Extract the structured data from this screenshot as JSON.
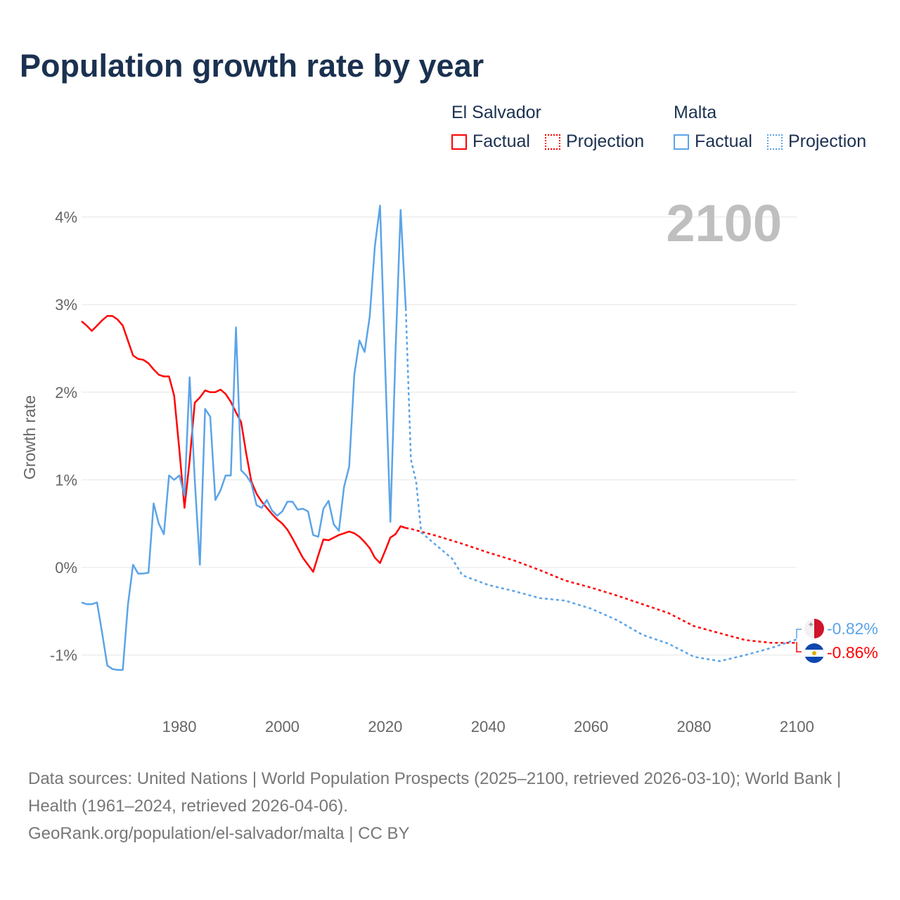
{
  "title": "Population growth rate by year",
  "year_label": "2100",
  "legend": {
    "groups": [
      {
        "name": "El Salvador",
        "factual": "Factual",
        "projection": "Projection",
        "color": "#ff0000"
      },
      {
        "name": "Malta",
        "factual": "Factual",
        "projection": "Projection",
        "color": "#5ba4e8"
      }
    ]
  },
  "end_labels": {
    "malta": "-0.82%",
    "el_salvador": "-0.86%"
  },
  "source": {
    "line1": "Data sources: United Nations | World Population Prospects (2025–2100, retrieved 2026-03-10); World Bank | Health (1961–2024, retrieved 2026-04-06).",
    "line2": "GeoRank.org/population/el-salvador/malta | CC BY"
  },
  "chart_data": {
    "type": "line",
    "title": "Population growth rate by year",
    "xlabel": "",
    "ylabel": "Growth rate",
    "xlim": [
      1961,
      2100
    ],
    "ylim": [
      -1.6,
      4.8
    ],
    "x_ticks": [
      1980,
      2000,
      2020,
      2040,
      2060,
      2080,
      2100
    ],
    "y_ticks": [
      -1,
      0,
      1,
      2,
      3,
      4
    ],
    "y_tick_labels": [
      "-1%",
      "0%",
      "1%",
      "2%",
      "3%",
      "4%"
    ],
    "grid": true,
    "legend_position": "top-right",
    "series": [
      {
        "name": "El Salvador",
        "kind": "factual",
        "color": "#ff0000",
        "x_start": 1961,
        "values": [
          2.81,
          2.76,
          2.7,
          2.76,
          2.82,
          2.87,
          2.87,
          2.83,
          2.76,
          2.59,
          2.42,
          2.38,
          2.37,
          2.33,
          2.26,
          2.2,
          2.18,
          2.18,
          1.96,
          1.34,
          0.68,
          1.22,
          1.88,
          1.94,
          2.02,
          2.0,
          2.0,
          2.03,
          1.98,
          1.89,
          1.77,
          1.66,
          1.3,
          0.98,
          0.84,
          0.75,
          0.68,
          0.61,
          0.55,
          0.5,
          0.43,
          0.33,
          0.22,
          0.11,
          0.03,
          -0.05,
          0.14,
          0.32,
          0.31,
          0.34,
          0.37,
          0.39,
          0.41,
          0.39,
          0.35,
          0.29,
          0.22,
          0.11,
          0.05,
          0.19,
          0.34,
          0.38,
          0.47,
          0.45
        ]
      },
      {
        "name": "El Salvador",
        "kind": "projection",
        "color": "#ff0000",
        "x": [
          2024,
          2025,
          2030,
          2035,
          2040,
          2045,
          2050,
          2055,
          2060,
          2065,
          2070,
          2075,
          2080,
          2085,
          2090,
          2095,
          2100
        ],
        "values": [
          0.45,
          0.44,
          0.36,
          0.27,
          0.17,
          0.08,
          -0.03,
          -0.15,
          -0.23,
          -0.32,
          -0.42,
          -0.52,
          -0.67,
          -0.75,
          -0.83,
          -0.86,
          -0.86
        ]
      },
      {
        "name": "Malta",
        "kind": "factual",
        "color": "#5ba4e8",
        "x_start": 1961,
        "values": [
          -0.4,
          -0.42,
          -0.42,
          -0.4,
          -0.75,
          -1.12,
          -1.16,
          -1.17,
          -1.17,
          -0.43,
          0.03,
          -0.07,
          -0.07,
          -0.06,
          0.73,
          0.5,
          0.38,
          1.05,
          1.0,
          1.05,
          0.82,
          2.17,
          1.0,
          0.03,
          1.81,
          1.72,
          0.77,
          0.88,
          1.05,
          1.05,
          2.74,
          1.11,
          1.05,
          0.96,
          0.71,
          0.68,
          0.77,
          0.65,
          0.59,
          0.64,
          0.75,
          0.75,
          0.66,
          0.67,
          0.64,
          0.37,
          0.35,
          0.67,
          0.76,
          0.49,
          0.42,
          0.92,
          1.15,
          2.2,
          2.59,
          2.46,
          2.87,
          3.67,
          4.13,
          2.3,
          0.52,
          2.46,
          4.08,
          2.96
        ]
      },
      {
        "name": "Malta",
        "kind": "projection",
        "color": "#5ba4e8",
        "x": [
          2024,
          2025,
          2026,
          2027,
          2030,
          2033,
          2035,
          2040,
          2045,
          2050,
          2055,
          2060,
          2065,
          2070,
          2075,
          2080,
          2085,
          2090,
          2095,
          2100
        ],
        "values": [
          2.96,
          1.23,
          0.98,
          0.4,
          0.25,
          0.1,
          -0.09,
          -0.2,
          -0.27,
          -0.35,
          -0.38,
          -0.47,
          -0.6,
          -0.77,
          -0.87,
          -1.02,
          -1.07,
          -1.0,
          -0.92,
          -0.82
        ]
      }
    ]
  }
}
